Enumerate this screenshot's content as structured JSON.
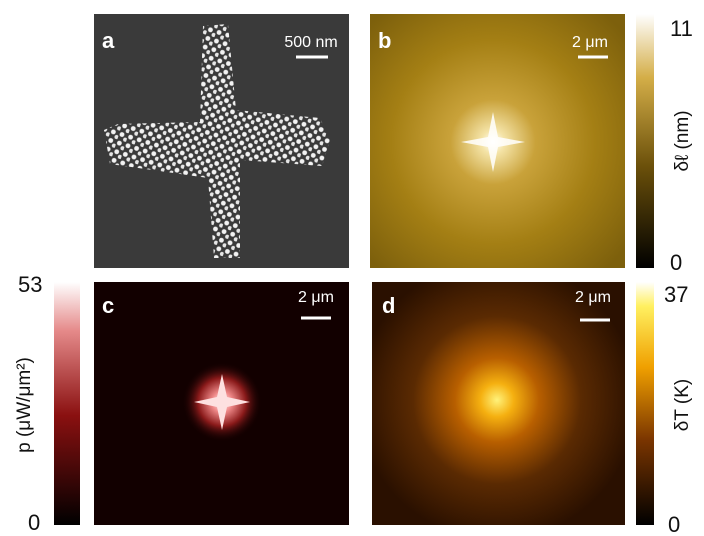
{
  "panels": [
    {
      "label": "a",
      "scale_bar": "500 nm"
    },
    {
      "label": "b",
      "scale_bar": "2 μm"
    },
    {
      "label": "c",
      "scale_bar": "2 μm"
    },
    {
      "label": "d",
      "scale_bar": "2 μm"
    }
  ],
  "colorbars": [
    {
      "label": "δℓ (nm)",
      "max": "11",
      "min": "0"
    },
    {
      "label": "p (μW/μm²)",
      "max": "53",
      "min": "0"
    },
    {
      "label": "δT (K)",
      "max": "37",
      "min": "0"
    }
  ]
}
